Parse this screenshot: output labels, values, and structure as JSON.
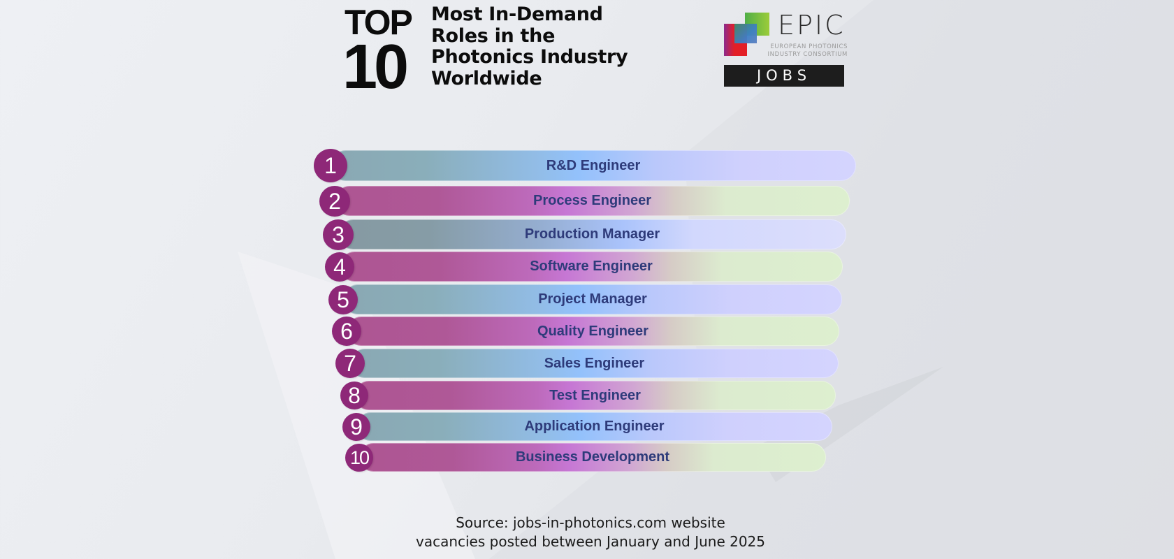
{
  "header": {
    "top_label": "TOP",
    "count_label": "10",
    "headline_lines": [
      "Most In-Demand",
      "Roles in the",
      "Photonics Industry",
      "Worldwide"
    ]
  },
  "logo": {
    "brand": "EPIC",
    "subtitle_lines": [
      "EUROPEAN PHOTONICS",
      "INDUSTRY CONSORTIUM"
    ],
    "jobs_label": "JOBS",
    "colors": {
      "red": "#e31f26",
      "purple": "#9a2a8a",
      "green": "#8cc63f",
      "blue": "#3b7fc4",
      "dark": "#1d1d1d"
    }
  },
  "ranking": {
    "items": [
      {
        "rank": "1",
        "role": "R&D Engineer",
        "style": "blue"
      },
      {
        "rank": "2",
        "role": "Process Engineer",
        "style": "pink"
      },
      {
        "rank": "3",
        "role": "Production Manager",
        "style": "blue"
      },
      {
        "rank": "4",
        "role": "Software Engineer",
        "style": "pink"
      },
      {
        "rank": "5",
        "role": "Project Manager",
        "style": "blue"
      },
      {
        "rank": "6",
        "role": "Quality Engineer",
        "style": "pink"
      },
      {
        "rank": "7",
        "role": "Sales Engineer",
        "style": "blue"
      },
      {
        "rank": "8",
        "role": "Test Engineer",
        "style": "pink"
      },
      {
        "rank": "9",
        "role": "Application Engineer",
        "style": "blue"
      },
      {
        "rank": "10",
        "role": "Business Development",
        "style": "pink"
      }
    ],
    "colors": {
      "badge": "#8e2878",
      "label_text": "#2e3b7a"
    }
  },
  "footer": {
    "source_line": "Source: jobs-in-photonics.com website",
    "period_line": "vacancies posted between January and June 2025"
  }
}
